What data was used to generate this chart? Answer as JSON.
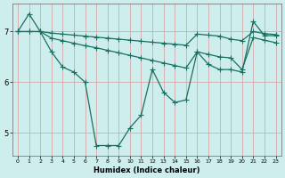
{
  "xlabel": "Humidex (Indice chaleur)",
  "xlim": [
    -0.5,
    23.5
  ],
  "ylim": [
    4.55,
    7.55
  ],
  "yticks": [
    5,
    6,
    7
  ],
  "xticks": [
    0,
    1,
    2,
    3,
    4,
    5,
    6,
    7,
    8,
    9,
    10,
    11,
    12,
    13,
    14,
    15,
    16,
    17,
    18,
    19,
    20,
    21,
    22,
    23
  ],
  "background_color": "#ceeeed",
  "grid_color": "#d4a8a8",
  "line_color": "#1a7060",
  "line1_y": [
    7.0,
    7.0,
    7.0,
    6.97,
    6.95,
    6.93,
    6.91,
    6.89,
    6.87,
    6.85,
    6.83,
    6.81,
    6.79,
    6.77,
    6.75,
    6.73,
    6.95,
    6.93,
    6.91,
    6.85,
    6.82,
    7.0,
    6.96,
    6.94
  ],
  "line2_y": [
    7.0,
    7.0,
    7.0,
    6.87,
    6.82,
    6.77,
    6.72,
    6.68,
    6.63,
    6.58,
    6.53,
    6.48,
    6.43,
    6.38,
    6.33,
    6.28,
    6.6,
    6.55,
    6.5,
    6.48,
    6.25,
    6.88,
    6.83,
    6.78
  ],
  "line3_y": [
    7.0,
    7.35,
    7.0,
    6.6,
    6.3,
    6.2,
    6.0,
    4.75,
    4.75,
    4.75,
    5.1,
    5.35,
    6.25,
    5.8,
    5.6,
    5.65,
    6.6,
    6.35,
    6.25,
    6.25,
    6.2,
    7.2,
    6.92,
    6.92
  ],
  "marker": "+",
  "marker_size": 4,
  "line_width": 0.9
}
